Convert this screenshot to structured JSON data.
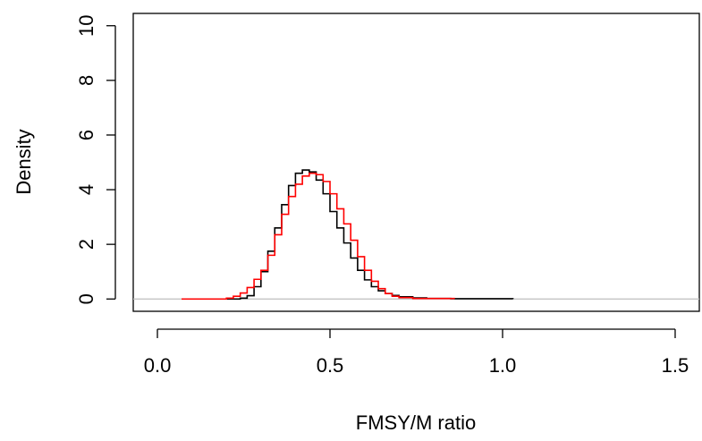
{
  "chart_data": {
    "type": "line",
    "title": "",
    "xlabel": "FMSY/M ratio",
    "ylabel": "Density",
    "xlim": [
      -0.07,
      1.57
    ],
    "ylim": [
      -0.45,
      10.45
    ],
    "x_ticks": [
      0.0,
      0.5,
      1.0,
      1.5
    ],
    "x_tick_labels": [
      "0.0",
      "0.5",
      "1.0",
      "1.5"
    ],
    "y_ticks": [
      0,
      2,
      4,
      6,
      8,
      10
    ],
    "y_tick_labels": [
      "0",
      "2",
      "4",
      "6",
      "8",
      "10"
    ],
    "grid": false,
    "legend": "none",
    "baseline": {
      "y": 0,
      "color": "#bebebe"
    },
    "series": [
      {
        "color": "#000000",
        "step": true,
        "x": [
          0.2,
          0.24,
          0.26,
          0.28,
          0.3,
          0.32,
          0.34,
          0.36,
          0.38,
          0.4,
          0.42,
          0.44,
          0.46,
          0.48,
          0.5,
          0.52,
          0.54,
          0.56,
          0.58,
          0.6,
          0.62,
          0.64,
          0.66,
          0.68,
          0.7,
          0.74,
          0.78,
          0.85,
          1.03
        ],
        "y": [
          0.0,
          0.03,
          0.12,
          0.45,
          1.0,
          1.75,
          2.6,
          3.45,
          4.15,
          4.6,
          4.72,
          4.65,
          4.35,
          3.85,
          3.2,
          2.6,
          2.05,
          1.5,
          1.05,
          0.7,
          0.45,
          0.3,
          0.2,
          0.13,
          0.08,
          0.04,
          0.02,
          0.01,
          0.0
        ]
      },
      {
        "color": "#ff0000",
        "step": true,
        "x": [
          0.07,
          0.16,
          0.2,
          0.22,
          0.24,
          0.26,
          0.28,
          0.3,
          0.32,
          0.34,
          0.36,
          0.38,
          0.4,
          0.42,
          0.44,
          0.46,
          0.48,
          0.5,
          0.52,
          0.54,
          0.56,
          0.58,
          0.6,
          0.62,
          0.64,
          0.66,
          0.68,
          0.7,
          0.74,
          0.86
        ],
        "y": [
          0.0,
          0.0,
          0.03,
          0.1,
          0.22,
          0.42,
          0.72,
          1.05,
          1.6,
          2.35,
          3.1,
          3.75,
          4.2,
          4.5,
          4.6,
          4.55,
          4.3,
          3.85,
          3.3,
          2.75,
          2.15,
          1.55,
          1.05,
          0.65,
          0.38,
          0.2,
          0.1,
          0.05,
          0.02,
          0.0
        ]
      }
    ]
  }
}
